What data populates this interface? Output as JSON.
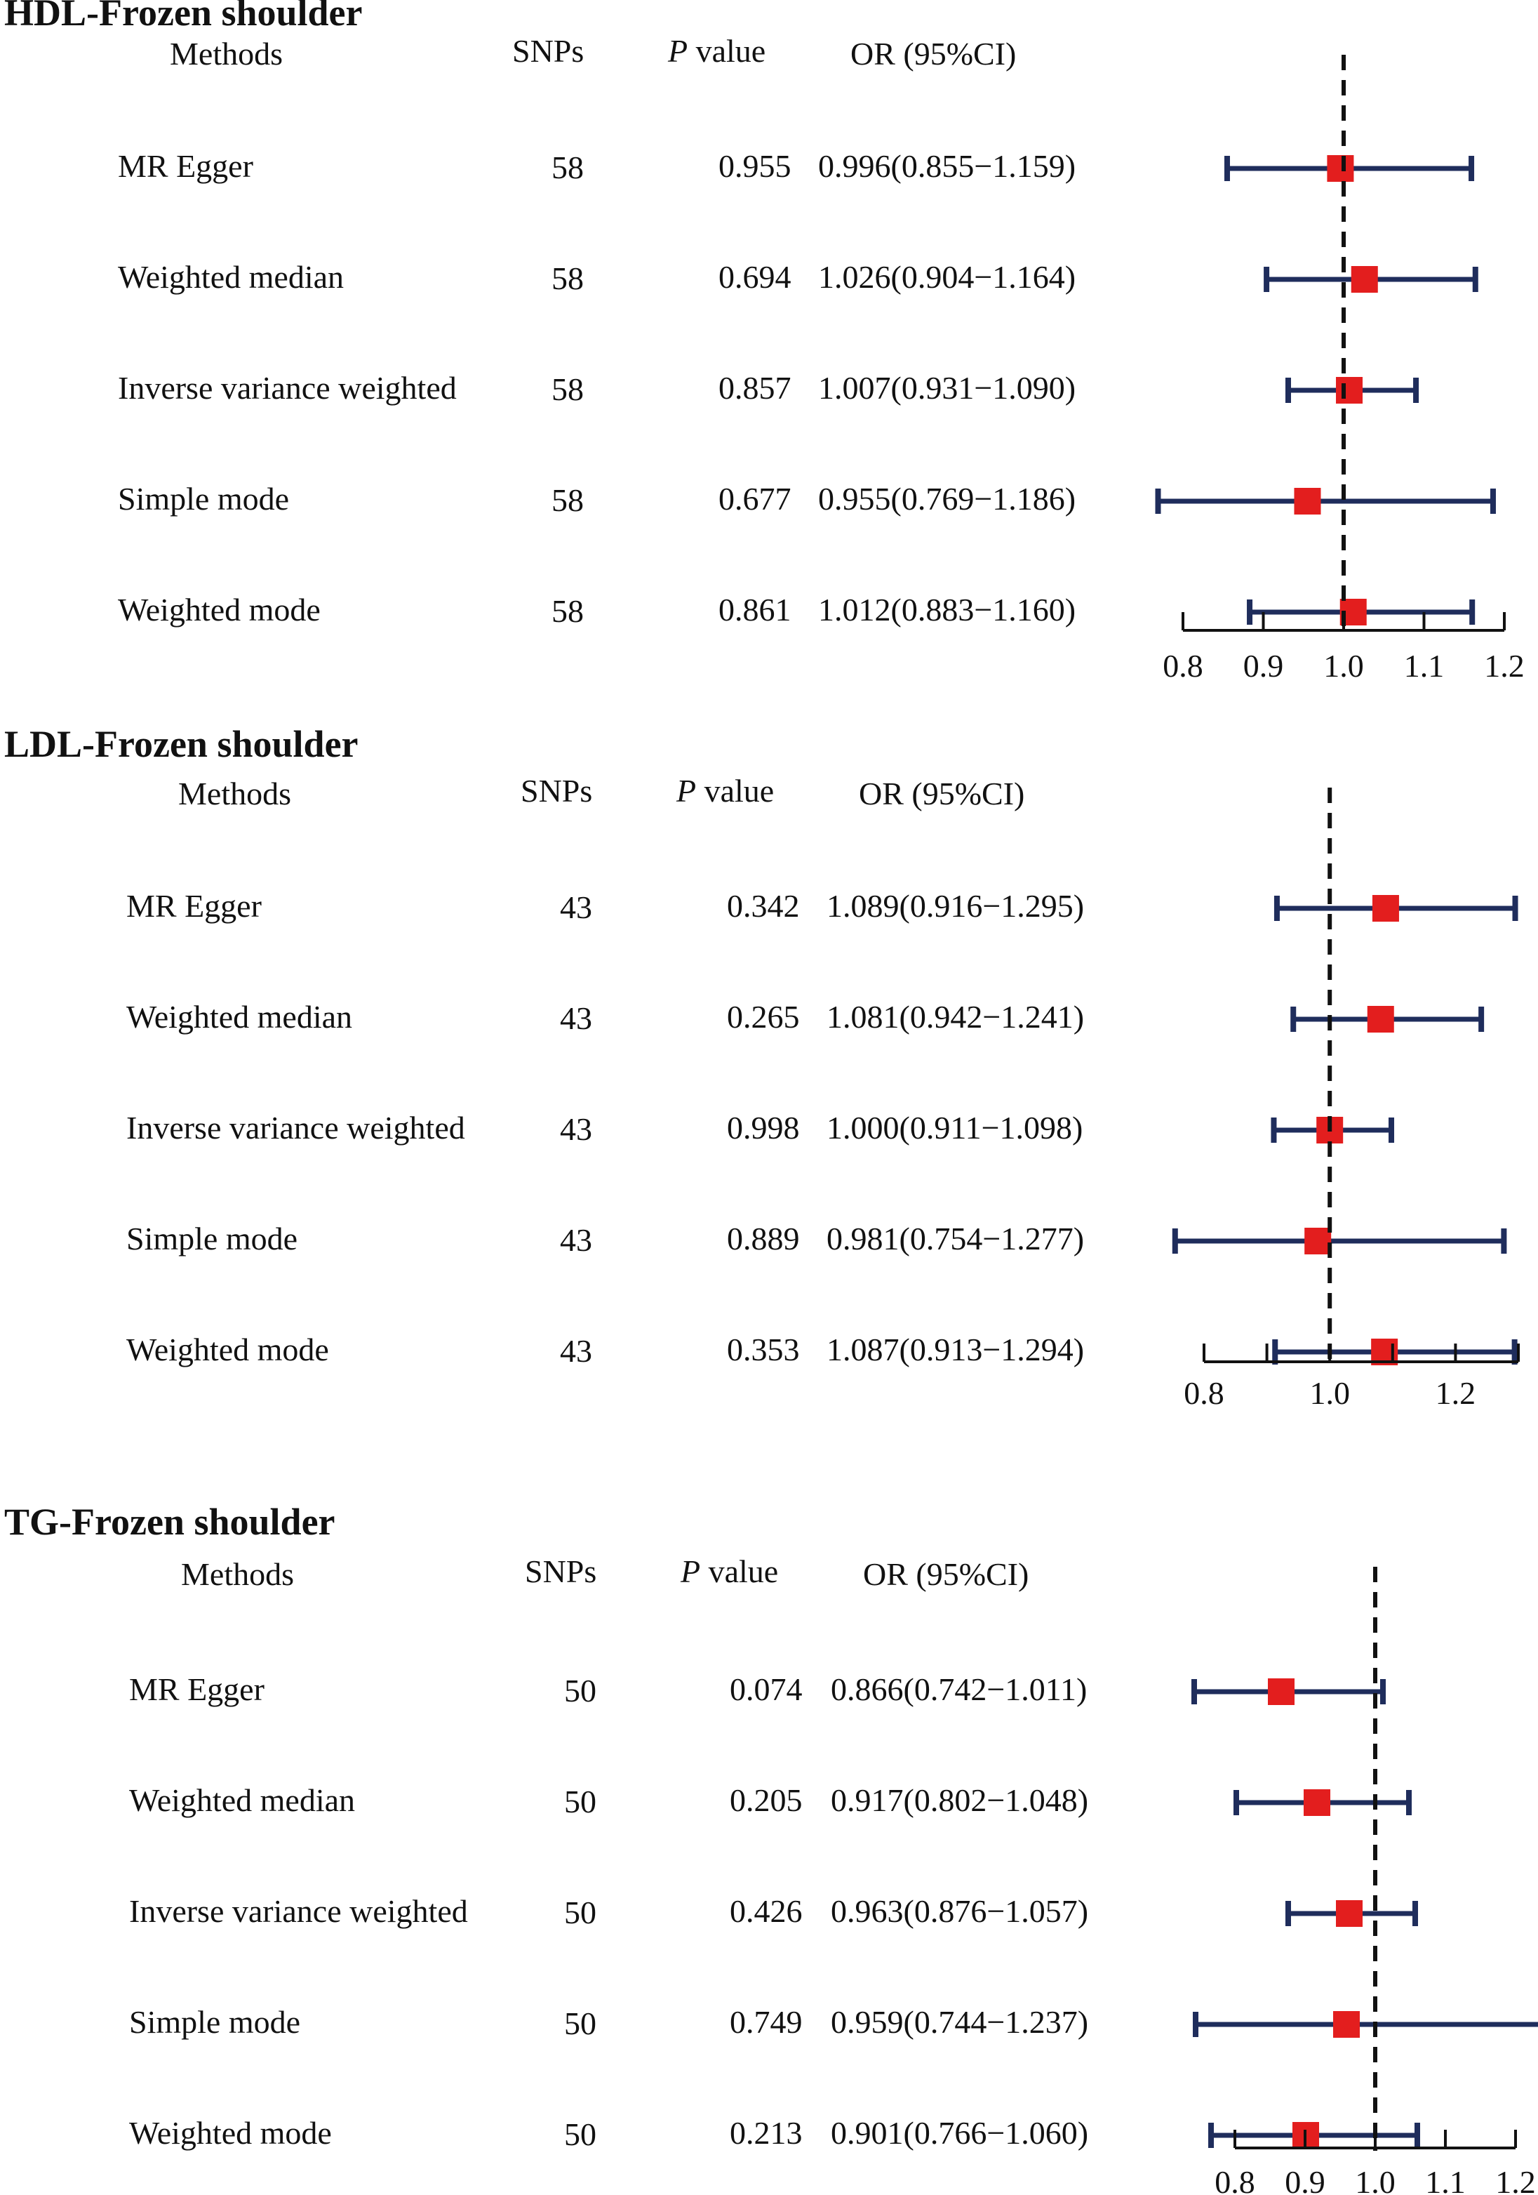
{
  "colors": {
    "ci_line": "#1F2D5C",
    "point": "#E31E1E",
    "axis": "#111111",
    "reference_line": "#111111",
    "text": "#111111"
  },
  "columns": {
    "methods": "Methods",
    "snps": "SNPs",
    "p_italic": "P",
    "p_rest": " value",
    "or": "OR (95%CI)"
  },
  "chart_data": [
    {
      "type": "forest",
      "title": "HDL-Frozen shoulder",
      "xlim": [
        0.8,
        1.2
      ],
      "ticks": [
        0.8,
        0.9,
        1.0,
        1.1,
        1.2
      ],
      "tick_labels": [
        "0.8",
        "0.9",
        "1.0",
        "1.1",
        "1.2"
      ],
      "reference": 1.0,
      "rows": [
        {
          "method": "MR Egger",
          "snps": "58",
          "p": "0.955",
          "or_text": "0.996(0.855−1.159)",
          "or": 0.996,
          "lo": 0.855,
          "hi": 1.159
        },
        {
          "method": "Weighted median",
          "snps": "58",
          "p": "0.694",
          "or_text": "1.026(0.904−1.164)",
          "or": 1.026,
          "lo": 0.904,
          "hi": 1.164
        },
        {
          "method": "Inverse variance weighted",
          "snps": "58",
          "p": "0.857",
          "or_text": "1.007(0.931−1.090)",
          "or": 1.007,
          "lo": 0.931,
          "hi": 1.09
        },
        {
          "method": "Simple mode",
          "snps": "58",
          "p": "0.677",
          "or_text": "0.955(0.769−1.186)",
          "or": 0.955,
          "lo": 0.769,
          "hi": 1.186
        },
        {
          "method": "Weighted mode",
          "snps": "58",
          "p": "0.861",
          "or_text": "1.012(0.883−1.160)",
          "or": 1.012,
          "lo": 0.883,
          "hi": 1.16
        }
      ]
    },
    {
      "type": "forest",
      "title": "LDL-Frozen shoulder",
      "xlim": [
        0.8,
        1.3
      ],
      "ticks": [
        0.8,
        0.9,
        1.0,
        1.1,
        1.2,
        1.3
      ],
      "tick_labels": [
        "0.8",
        "",
        "1.0",
        "",
        "1.2",
        ""
      ],
      "reference": 1.0,
      "rows": [
        {
          "method": "MR Egger",
          "snps": "43",
          "p": "0.342",
          "or_text": "1.089(0.916−1.295)",
          "or": 1.089,
          "lo": 0.916,
          "hi": 1.295
        },
        {
          "method": "Weighted median",
          "snps": "43",
          "p": "0.265",
          "or_text": "1.081(0.942−1.241)",
          "or": 1.081,
          "lo": 0.942,
          "hi": 1.241
        },
        {
          "method": "Inverse variance weighted",
          "snps": "43",
          "p": "0.998",
          "or_text": "1.000(0.911−1.098)",
          "or": 1.0,
          "lo": 0.911,
          "hi": 1.098
        },
        {
          "method": "Simple mode",
          "snps": "43",
          "p": "0.889",
          "or_text": "0.981(0.754−1.277)",
          "or": 0.981,
          "lo": 0.754,
          "hi": 1.277
        },
        {
          "method": "Weighted mode",
          "snps": "43",
          "p": "0.353",
          "or_text": "1.087(0.913−1.294)",
          "or": 1.087,
          "lo": 0.913,
          "hi": 1.294
        }
      ]
    },
    {
      "type": "forest",
      "title": "TG-Frozen shoulder",
      "xlim": [
        0.8,
        1.2
      ],
      "ticks": [
        0.8,
        0.9,
        1.0,
        1.1,
        1.2
      ],
      "tick_labels": [
        "0.8",
        "0.9",
        "1.0",
        "1.1",
        "1.2"
      ],
      "reference": 1.0,
      "rows": [
        {
          "method": "MR Egger",
          "snps": "50",
          "p": "0.074",
          "or_text": "0.866(0.742−1.011)",
          "or": 0.866,
          "lo": 0.742,
          "hi": 1.011
        },
        {
          "method": "Weighted median",
          "snps": "50",
          "p": "0.205",
          "or_text": "0.917(0.802−1.048)",
          "or": 0.917,
          "lo": 0.802,
          "hi": 1.048
        },
        {
          "method": "Inverse variance weighted",
          "snps": "50",
          "p": "0.426",
          "or_text": "0.963(0.876−1.057)",
          "or": 0.963,
          "lo": 0.876,
          "hi": 1.057
        },
        {
          "method": "Simple mode",
          "snps": "50",
          "p": "0.749",
          "or_text": "0.959(0.744−1.237)",
          "or": 0.959,
          "lo": 0.744,
          "hi": 1.237
        },
        {
          "method": "Weighted mode",
          "snps": "50",
          "p": "0.213",
          "or_text": "0.901(0.766−1.060)",
          "or": 0.901,
          "lo": 0.766,
          "hi": 1.06
        }
      ]
    }
  ]
}
